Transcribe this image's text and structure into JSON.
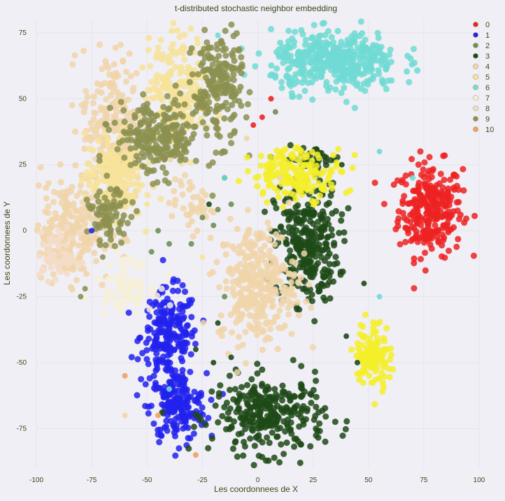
{
  "chart_data": {
    "type": "scatter",
    "title": "t-distributed stochastic neighbor embedding",
    "xlabel": "Les coordonnees de X",
    "ylabel": "Les coordonnees de Y",
    "xlim": [
      -100,
      100
    ],
    "ylim": [
      -90,
      80
    ],
    "x_ticks": [
      -100,
      -75,
      -50,
      -25,
      0,
      25,
      50,
      75,
      100
    ],
    "y_ticks": [
      -75,
      -50,
      -25,
      0,
      25,
      50,
      75
    ],
    "grid": true,
    "legend_position": "top-right",
    "series": [
      {
        "name": "0",
        "color": "#ee2222",
        "clusters": [
          {
            "cx": 78,
            "cy": 8,
            "sx": 9,
            "sy": 11,
            "n": 280
          }
        ],
        "outliers": [
          [
            6,
            50
          ],
          [
            2,
            43
          ],
          [
            -2,
            40
          ]
        ]
      },
      {
        "name": "1",
        "color": "#2222ee",
        "clusters": [
          {
            "cx": -40,
            "cy": -40,
            "sx": 8,
            "sy": 11,
            "n": 220
          },
          {
            "cx": -36,
            "cy": -67,
            "sx": 8,
            "sy": 8,
            "n": 180
          }
        ],
        "outliers": [
          [
            -75,
            0
          ]
        ]
      },
      {
        "name": "2",
        "color": "#6f8f55",
        "clusters": [],
        "outliers": [
          [
            -48,
            -8
          ],
          [
            -40,
            -5
          ],
          [
            -18,
            8
          ],
          [
            -12,
            10
          ],
          [
            8,
            45
          ],
          [
            -20,
            2
          ],
          [
            -15,
            -25
          ],
          [
            -45,
            0
          ],
          [
            -30,
            -5
          ],
          [
            -25,
            5
          ]
        ]
      },
      {
        "name": "3",
        "color": "#1e4a17",
        "clusters": [
          {
            "cx": 22,
            "cy": -5,
            "sx": 9,
            "sy": 14,
            "n": 300
          },
          {
            "cx": 25,
            "cy": 27,
            "sx": 8,
            "sy": 3,
            "n": 40
          },
          {
            "cx": 5,
            "cy": -70,
            "sx": 16,
            "sy": 9,
            "n": 300
          }
        ],
        "outliers": [
          [
            -20,
            -50
          ],
          [
            -12,
            -48
          ],
          [
            -28,
            -45
          ],
          [
            -18,
            -35
          ],
          [
            40,
            -40
          ],
          [
            45,
            -50
          ],
          [
            48,
            -20
          ],
          [
            38,
            25
          ],
          [
            -22,
            10
          ],
          [
            -15,
            20
          ]
        ]
      },
      {
        "name": "4",
        "color": "#f1d5aa",
        "clusters": [
          {
            "cx": -85,
            "cy": 0,
            "sx": 11,
            "sy": 12,
            "n": 240
          },
          {
            "cx": -65,
            "cy": 40,
            "sx": 9,
            "sy": 18,
            "n": 220
          },
          {
            "cx": 0,
            "cy": -20,
            "sx": 11,
            "sy": 14,
            "n": 320
          },
          {
            "cx": -30,
            "cy": 10,
            "sx": 6,
            "sy": 6,
            "n": 40
          }
        ],
        "outliers": [
          [
            -60,
            -70
          ],
          [
            10,
            20
          ],
          [
            -5,
            35
          ]
        ]
      },
      {
        "name": "5",
        "color": "#f7e39a",
        "clusters": [
          {
            "cx": -65,
            "cy": 20,
            "sx": 8,
            "sy": 10,
            "n": 200
          },
          {
            "cx": -35,
            "cy": 55,
            "sx": 9,
            "sy": 12,
            "n": 220
          }
        ],
        "outliers": [
          [
            -50,
            10
          ],
          [
            -25,
            -10
          ]
        ]
      },
      {
        "name": "6",
        "color": "#70dbd4",
        "clusters": [
          {
            "cx": 35,
            "cy": 64,
            "sx": 18,
            "sy": 7,
            "n": 420
          }
        ],
        "outliers": [
          [
            -15,
            20
          ],
          [
            55,
            -25
          ],
          [
            70,
            20
          ],
          [
            -40,
            -60
          ],
          [
            55,
            30
          ],
          [
            -18,
            74
          ]
        ]
      },
      {
        "name": "7",
        "color": "#f7f0d8",
        "clusters": [
          {
            "cx": -60,
            "cy": -20,
            "sx": 8,
            "sy": 6,
            "n": 80
          }
        ],
        "outliers": []
      },
      {
        "name": "8",
        "color": "#f4dcc8",
        "clusters": [
          {
            "cx": -90,
            "cy": -10,
            "sx": 6,
            "sy": 6,
            "n": 60
          }
        ],
        "outliers": []
      },
      {
        "name": "9",
        "color": "#8c9150",
        "clusters": [
          {
            "cx": -45,
            "cy": 35,
            "sx": 12,
            "sy": 9,
            "n": 240
          },
          {
            "cx": -18,
            "cy": 55,
            "sx": 7,
            "sy": 13,
            "n": 200
          },
          {
            "cx": -67,
            "cy": 5,
            "sx": 6,
            "sy": 6,
            "n": 80
          }
        ],
        "outliers": [
          [
            -80,
            -25
          ],
          [
            -78,
            -22
          ],
          [
            -70,
            -10
          ]
        ]
      },
      {
        "name": "10",
        "color": "#f0a060",
        "clusters": [],
        "outliers": [
          [
            -28,
            -85
          ],
          [
            -60,
            -55
          ],
          [
            -45,
            -70
          ]
        ]
      }
    ],
    "extra_clusters": [
      {
        "series": "5",
        "color": "#f5ef2a",
        "cx": 18,
        "cy": 22,
        "sx": 13,
        "sy": 6,
        "n": 180
      },
      {
        "series": "5",
        "color": "#f5ef2a",
        "cx": 52,
        "cy": -47,
        "sx": 5,
        "sy": 8,
        "n": 120
      }
    ]
  }
}
